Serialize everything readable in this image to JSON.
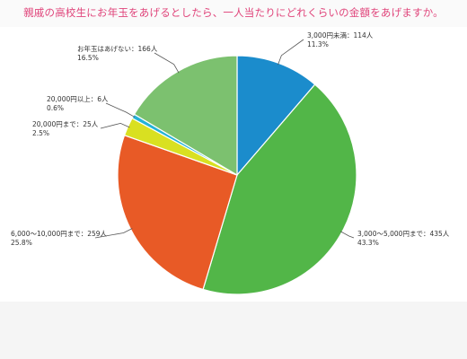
{
  "chart_data": {
    "type": "pie",
    "title": "親戚の高校生にお年玉をあげるとしたら、一人当たりにどれくらいの金額をあげますか。",
    "title_color": "#e0457b",
    "slices": [
      {
        "name": "3,000円未満",
        "label": "3,000円未満：114人",
        "count": 114,
        "percent": 11.3,
        "percent_label": "11.3%",
        "color": "#1b8ccc"
      },
      {
        "name": "3,000〜5,000円まで",
        "label": "3,000〜5,000円まで：435人",
        "count": 435,
        "percent": 43.3,
        "percent_label": "43.3%",
        "color": "#52b648"
      },
      {
        "name": "6,000〜10,000円まで",
        "label": "6,000〜10,000円まで：259人",
        "count": 259,
        "percent": 25.8,
        "percent_label": "25.8%",
        "color": "#e85a26"
      },
      {
        "name": "20,000円まで",
        "label": "20,000円まで：25人",
        "count": 25,
        "percent": 2.5,
        "percent_label": "2.5%",
        "color": "#d9e021"
      },
      {
        "name": "20,000円以上",
        "label": "20,000円以上：6人",
        "count": 6,
        "percent": 0.6,
        "percent_label": "0.6%",
        "color": "#23b2d8"
      },
      {
        "name": "お年玉はあげない",
        "label": "お年玉はあげない：166人",
        "count": 166,
        "percent": 16.5,
        "percent_label": "16.5%",
        "color": "#7cc16f"
      }
    ]
  }
}
